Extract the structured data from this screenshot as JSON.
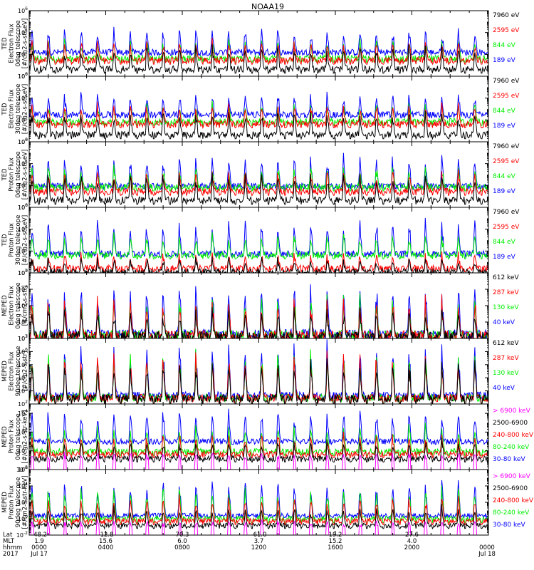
{
  "title": "NOAA19",
  "colors": {
    "black": "#000000",
    "red": "#ff0000",
    "green": "#00ee00",
    "blue": "#0000ff",
    "magenta": "#ff00ff"
  },
  "x_axis": {
    "row_labels": [
      "Lat",
      "MLT",
      "hhmm",
      "2017"
    ],
    "ticks": [
      {
        "values": [
          "-48.2",
          "1.9",
          "0000",
          "Jul 17"
        ]
      },
      {
        "values": [
          "-12.8",
          "15.6",
          "0400",
          ""
        ]
      },
      {
        "values": [
          "70.3",
          "6.0",
          "0800",
          ""
        ]
      },
      {
        "values": [
          "-61.0",
          "3.7",
          "1200",
          ""
        ]
      },
      {
        "values": [
          "19.2",
          "15.2",
          "1600",
          ""
        ]
      },
      {
        "values": [
          "27.6",
          "4.0",
          "2000",
          ""
        ]
      },
      {
        "values": [
          "",
          "",
          "0000",
          "Jul 18"
        ]
      }
    ]
  },
  "chart_data": [
    {
      "type": "line",
      "ylabel": [
        "TED",
        "Electron Flux",
        "0deg telescope",
        "[#/cm2-s-str-eV]"
      ],
      "yscale": "log",
      "yticks": [
        "10^0",
        "10^2",
        "10^4",
        "10^6"
      ],
      "ylim": [
        1,
        1000000
      ],
      "legend": [
        {
          "label": "7960 eV",
          "color": "black"
        },
        {
          "label": "2595 eV",
          "color": "red"
        },
        {
          "label": "844 eV",
          "color": "green"
        },
        {
          "label": "189 eV",
          "color": "blue"
        }
      ],
      "approx_levels": {
        "blue": [
          100,
          20000
        ],
        "green": [
          30,
          2000
        ],
        "red": [
          20,
          1500
        ],
        "black": [
          3,
          500
        ]
      }
    },
    {
      "type": "line",
      "ylabel": [
        "TED",
        "Electron Flux",
        "30deg telescope",
        "[#/cm2-s-str-eV]"
      ],
      "yscale": "log",
      "yticks": [
        "10^0",
        "10^2",
        "10^4",
        "10^6"
      ],
      "ylim": [
        1,
        1000000
      ],
      "legend": [
        {
          "label": "7960 eV",
          "color": "black"
        },
        {
          "label": "2595 eV",
          "color": "red"
        },
        {
          "label": "844 eV",
          "color": "green"
        },
        {
          "label": "189 eV",
          "color": "blue"
        }
      ],
      "approx_levels": {
        "blue": [
          200,
          20000
        ],
        "green": [
          50,
          3000
        ],
        "red": [
          30,
          2000
        ],
        "black": [
          3,
          500
        ]
      }
    },
    {
      "type": "line",
      "ylabel": [
        "TED",
        "Proton Flux",
        "0deg telescope",
        "[#/cm2-s-str-eV]"
      ],
      "yscale": "log",
      "yticks": [
        "10^0",
        "10^2",
        "10^4",
        "10^6"
      ],
      "ylim": [
        1,
        1000000
      ],
      "legend": [
        {
          "label": "7960 eV",
          "color": "black"
        },
        {
          "label": "2595 eV",
          "color": "red"
        },
        {
          "label": "844 eV",
          "color": "green"
        },
        {
          "label": "189 eV",
          "color": "blue"
        }
      ],
      "approx_levels": {
        "blue": [
          50,
          50000
        ],
        "green": [
          50,
          5000
        ],
        "red": [
          20,
          2000
        ],
        "black": [
          3,
          1000
        ]
      }
    },
    {
      "type": "line",
      "ylabel": [
        "TED",
        "Proton Flux",
        "30deg telescope",
        "[#/cm2-s-str-eV]"
      ],
      "yscale": "log",
      "yticks": [
        "10^0",
        "10^2",
        "10^4",
        "10^6"
      ],
      "ylim": [
        1,
        1000000
      ],
      "legend": [
        {
          "label": "7960 eV",
          "color": "black"
        },
        {
          "label": "2595 eV",
          "color": "red"
        },
        {
          "label": "844 eV",
          "color": "green"
        },
        {
          "label": "189 eV",
          "color": "blue"
        }
      ],
      "approx_levels": {
        "blue": [
          30,
          50000
        ],
        "green": [
          30,
          3000
        ],
        "red": [
          2,
          50
        ],
        "black": [
          1,
          20
        ]
      }
    },
    {
      "type": "line",
      "ylabel": [
        "MEPED",
        "Electron Flux",
        "0deg telescope",
        "[#/cm2-s-str]"
      ],
      "yscale": "log",
      "yticks": [
        "10^3",
        "10^4",
        "10^5",
        "10^6",
        "10^7"
      ],
      "ylim": [
        1000,
        10000000
      ],
      "legend": [
        {
          "label": "612 keV",
          "color": "black"
        },
        {
          "label": "287 keV",
          "color": "red"
        },
        {
          "label": "130 keV",
          "color": "green"
        },
        {
          "label": "40 keV",
          "color": "blue"
        }
      ],
      "approx_levels": {
        "blue": [
          1000,
          2000000
        ],
        "green": [
          1000,
          300000
        ],
        "red": [
          1000,
          200000
        ],
        "black": [
          1000,
          50000
        ]
      }
    },
    {
      "type": "line",
      "ylabel": [
        "MEPED",
        "Electron Flux",
        "90deg telescope",
        "[#/cm2-s-str]"
      ],
      "yscale": "log",
      "yticks": [
        "10^2",
        "10^3",
        "10^4",
        "10^5",
        "10^6",
        "10^7"
      ],
      "ylim": [
        100,
        10000000
      ],
      "legend": [
        {
          "label": "612 keV",
          "color": "black"
        },
        {
          "label": "287 keV",
          "color": "red"
        },
        {
          "label": "130 keV",
          "color": "green"
        },
        {
          "label": "40 keV",
          "color": "blue"
        }
      ],
      "approx_levels": {
        "blue": [
          200,
          3000000
        ],
        "green": [
          150,
          1000000
        ],
        "red": [
          150,
          500000
        ],
        "black": [
          150,
          200000
        ]
      }
    },
    {
      "type": "line",
      "ylabel": [
        "MEPED",
        "Proton Flux",
        "0deg telescope",
        "[#/cm2-s-str-keV]"
      ],
      "yscale": "log",
      "yticks": [
        "10^-2",
        "10^0",
        "10^2",
        "10^4"
      ],
      "ylim": [
        0.01,
        100000
      ],
      "legend": [
        {
          "label": "> 6900 keV",
          "color": "magenta"
        },
        {
          "label": "2500-6900",
          "color": "black"
        },
        {
          "label": "240-800 keV",
          "color": "red"
        },
        {
          "label": "80-240 keV",
          "color": "green"
        },
        {
          "label": "30-80 keV",
          "color": "blue"
        }
      ],
      "approx_levels": {
        "blue": [
          5,
          20000
        ],
        "green": [
          0.5,
          500
        ],
        "red": [
          0.3,
          50
        ],
        "black": [
          0.1,
          10
        ],
        "magenta": [
          0.05,
          0.5
        ]
      }
    },
    {
      "type": "line",
      "ylabel": [
        "MEPED",
        "Proton Flux",
        "90deg telescope",
        "[#/cm2-s-str-keV]"
      ],
      "yscale": "log",
      "yticks": [
        "10^-2",
        "10^0",
        "10^2",
        "10^4",
        "10^6"
      ],
      "ylim": [
        0.01,
        1000000
      ],
      "legend": [
        {
          "label": "> 6900 keV",
          "color": "magenta"
        },
        {
          "label": "2500-6900",
          "color": "black"
        },
        {
          "label": "240-800 keV",
          "color": "red"
        },
        {
          "label": "80-240 keV",
          "color": "green"
        },
        {
          "label": "30-80 keV",
          "color": "blue"
        }
      ],
      "approx_levels": {
        "blue": [
          1,
          50000
        ],
        "green": [
          0.5,
          5000
        ],
        "red": [
          0.3,
          500
        ],
        "black": [
          0.1,
          20
        ],
        "magenta": [
          0.05,
          0.5
        ]
      }
    }
  ]
}
